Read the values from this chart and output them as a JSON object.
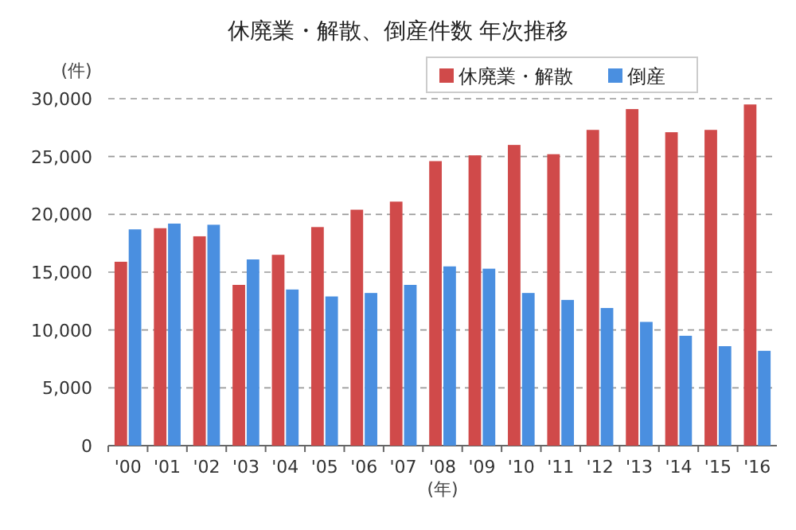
{
  "chart_data": {
    "type": "bar",
    "title": "休廃業・解散、倒産件数 年次推移",
    "ylabel": "(件)",
    "xlabel": "(年)",
    "categories": [
      "'00",
      "'01",
      "'02",
      "'03",
      "'04",
      "'05",
      "'06",
      "'07",
      "'08",
      "'09",
      "'10",
      "'11",
      "'12",
      "'13",
      "'14",
      "'15",
      "'16"
    ],
    "series": [
      {
        "name": "休廃業・解散",
        "color": "#d04a4a",
        "values": [
          15900,
          18800,
          18100,
          13900,
          16500,
          18900,
          20400,
          21100,
          24600,
          25100,
          26000,
          25200,
          27300,
          29100,
          27100,
          27300,
          29500
        ]
      },
      {
        "name": "倒産",
        "color": "#4a8fe0",
        "values": [
          18700,
          19200,
          19100,
          16100,
          13500,
          12900,
          13200,
          13900,
          15500,
          15300,
          13200,
          12600,
          11900,
          10700,
          9500,
          8600,
          8200
        ]
      }
    ],
    "ylim": [
      0,
      30000
    ],
    "yticks": [
      {
        "value": 0,
        "label": "0"
      },
      {
        "value": 5000,
        "label": "5,000"
      },
      {
        "value": 10000,
        "label": "10,000"
      },
      {
        "value": 15000,
        "label": "15,000"
      },
      {
        "value": 20000,
        "label": "20,000"
      },
      {
        "value": 25000,
        "label": "25,000"
      },
      {
        "value": 30000,
        "label": "30,000"
      }
    ],
    "grid": "y",
    "legend": "top right"
  }
}
